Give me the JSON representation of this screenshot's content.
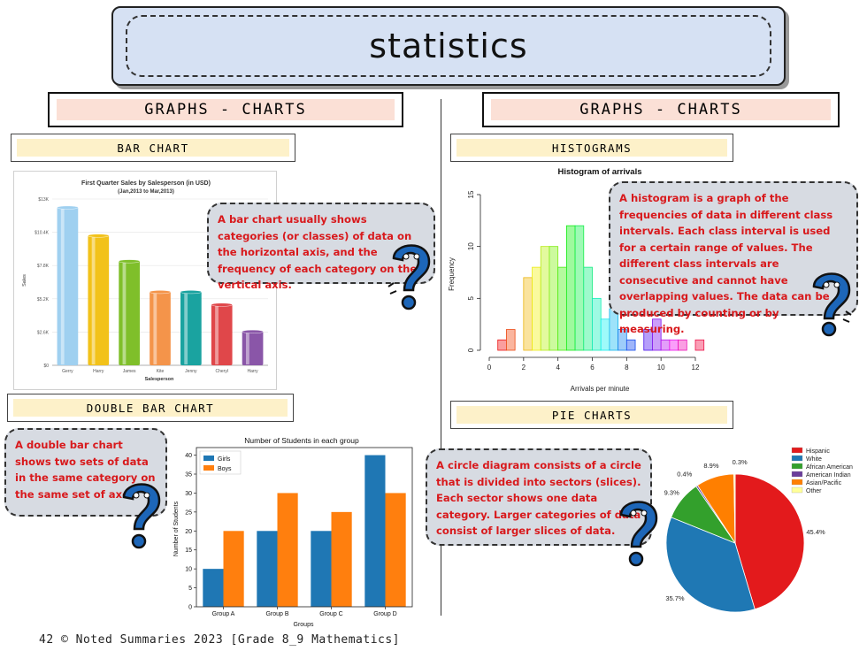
{
  "page_title": "statistics",
  "left_section": {
    "header": "GRAPHS - CHARTS",
    "bar_chart_heading": "BAR CHART",
    "bar_chart_note": "A bar chart usually shows categories (or classes) of data on the horizontal axis, and the frequency of each category on the vertical axis.",
    "double_bar_heading": "DOUBLE BAR CHART",
    "double_bar_note": "A double bar chart shows two sets of data in the same category on the same set of axes."
  },
  "right_section": {
    "header": "GRAPHS - CHARTS",
    "histogram_heading": "HISTOGRAMS",
    "histogram_note": "A histogram is a graph of the frequencies of data in different class intervals. Each class interval is used for a certain range of values. The different class intervals are consecutive and cannot have overlapping values. The data can be produced by counting or by measuring.",
    "pie_heading": "PIE CHARTS",
    "pie_note": "A circle diagram consists of a circle that is divided into sectors (slices). Each sector shows one data category. Larger categories of data consist of larger slices of data."
  },
  "footer": "42 © Noted Summaries 2023  [Grade 8_9 Mathematics]",
  "chart_data": [
    {
      "type": "bar",
      "title": "First Quarter Sales by Salesperson (in USD)",
      "subtitle": "(Jan,2013 to Mar,2013)",
      "xlabel": "Salesperson",
      "ylabel": "Sales",
      "categories": [
        "Gerry",
        "Harry",
        "James",
        "Kite",
        "Jenny",
        "Cheryl",
        "Harry"
      ],
      "values": [
        12400,
        10200,
        8200,
        5800,
        5800,
        4800,
        2700
      ],
      "yticks": [
        "$0",
        "$2.6K",
        "$5.2K",
        "$7.8K",
        "$10.4K",
        "$13K"
      ],
      "ylim": [
        0,
        13000
      ],
      "colors": [
        "#9fd0f0",
        "#f2c21a",
        "#7fbf2a",
        "#f4944a",
        "#1aa3a0",
        "#e0474a",
        "#8a56a8"
      ]
    },
    {
      "type": "bar",
      "title": "Histogram of arrivals",
      "xlabel": "Arrivals per minute",
      "ylabel": "Frequency",
      "bin_width": 0.5,
      "bin_start": 0.5,
      "values": [
        1,
        2,
        0,
        7,
        8,
        10,
        10,
        8,
        12,
        12,
        8,
        5,
        3,
        4,
        2,
        1,
        0,
        2,
        3,
        1,
        1,
        1,
        0,
        1
      ],
      "xticks": [
        0,
        2,
        4,
        6,
        8,
        10,
        12
      ],
      "yticks": [
        0,
        5,
        10,
        15
      ],
      "xlim": [
        0,
        12
      ],
      "ylim": [
        0,
        15
      ]
    },
    {
      "type": "bar",
      "title": "Number of Students in each group",
      "xlabel": "Groups",
      "ylabel": "Number of Students",
      "categories": [
        "Group A",
        "Group B",
        "Group C",
        "Group D"
      ],
      "series": [
        {
          "name": "Girls",
          "values": [
            10,
            20,
            20,
            40
          ],
          "color": "#1f77b4"
        },
        {
          "name": "Boys",
          "values": [
            20,
            30,
            25,
            30
          ],
          "color": "#ff7f0e"
        }
      ],
      "ylim": [
        0,
        42
      ],
      "yticks": [
        0,
        5,
        10,
        15,
        20,
        25,
        30,
        35,
        40
      ],
      "legend": "top-left"
    },
    {
      "type": "pie",
      "labels": [
        "Hispanic",
        "White",
        "African American",
        "American Indian",
        "Asian/Pacific",
        "Other"
      ],
      "values": [
        45.4,
        35.7,
        9.3,
        0.4,
        8.9,
        0.3
      ],
      "value_labels": [
        "45.4%",
        "35.7%",
        "9.3%",
        "0.4%",
        "8.9%",
        "0.3%"
      ],
      "colors": [
        "#e31a1c",
        "#1f78b4",
        "#33a02c",
        "#6a3d9a",
        "#ff7f00",
        "#ffff99"
      ],
      "legend": "top-right"
    }
  ]
}
